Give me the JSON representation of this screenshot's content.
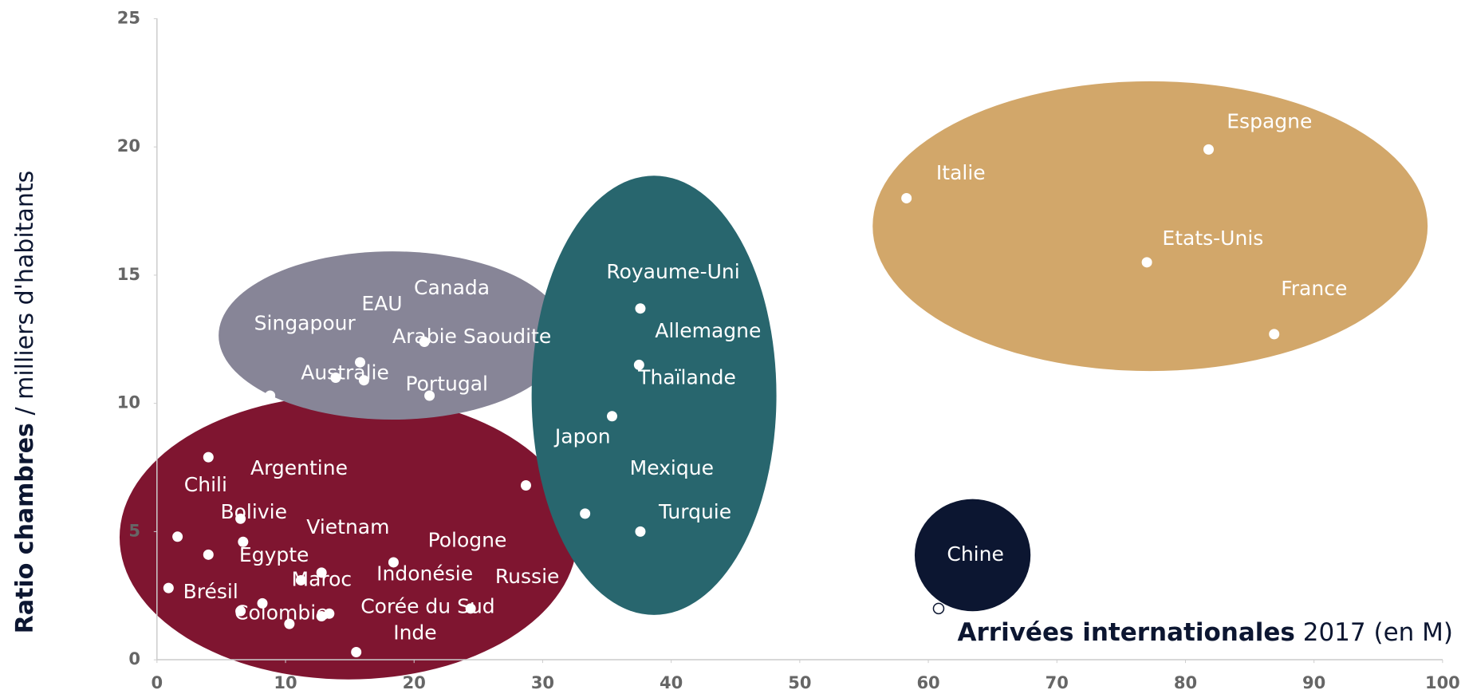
{
  "chart_data": {
    "type": "scatter",
    "ylabel_bold": "Ratio chambres",
    "ylabel": "/ milliers d'habitants",
    "xlabel_bold": "Arrivées internationales",
    "xlabel": "2017 (en M)",
    "xlim": [
      0,
      100
    ],
    "xticks": [
      0,
      10,
      20,
      30,
      40,
      50,
      60,
      70,
      80,
      90,
      100
    ],
    "ylim": [
      0,
      25
    ],
    "yticks": [
      0,
      5,
      10,
      15,
      20,
      25
    ],
    "series": [
      {
        "color": "#7f1530",
        "x": [
          4.0,
          6.5,
          6.7,
          1.6,
          4.0,
          0.9,
          8.2,
          6.5,
          10.3,
          11.2,
          12.8,
          12.8,
          13.4,
          18.4,
          15.5,
          24.4
        ],
        "y": [
          7.9,
          5.5,
          4.6,
          4.8,
          4.1,
          2.8,
          2.2,
          1.9,
          1.4,
          3.1,
          3.4,
          1.7,
          1.8,
          3.8,
          0.3,
          2.0
        ]
      },
      {
        "color": "#878597",
        "x": [
          15.8,
          13.9,
          16.1,
          20.8,
          21.2,
          8.8
        ],
        "y": [
          11.6,
          11.0,
          10.9,
          12.4,
          10.3,
          10.3
        ]
      },
      {
        "color": "#28666e",
        "x": [
          37.6,
          37.5,
          35.4,
          33.3,
          37.6,
          28.7
        ],
        "y": [
          13.7,
          11.5,
          9.5,
          5.7,
          5.0,
          6.8
        ]
      },
      {
        "color": "#d2a76a",
        "x": [
          81.8,
          58.3,
          77.0,
          86.9
        ],
        "y": [
          19.9,
          18.0,
          15.5,
          12.7
        ]
      },
      {
        "color": "#0c1631",
        "hollow": true,
        "x": [
          60.8
        ],
        "y": [
          2.0
        ]
      }
    ],
    "annotations": [
      "Espagne",
      "Italie",
      "Etats-Unis",
      "France",
      "Chine",
      "Royaume-Uni",
      "Allemagne",
      "Thaïlande",
      "Japon",
      "Mexique",
      "Turquie",
      "Canada",
      "EAU",
      "Singapour",
      "Arabie Saoudite",
      "Australie",
      "Portugal",
      "Argentine",
      "Chili",
      "Bolivie",
      "Vietnam",
      "Pologne",
      "Egypte",
      "Brésil",
      "Maroc",
      "Indonésie",
      "Russie",
      "Colombie",
      "Corée du Sud",
      "Inde"
    ]
  }
}
